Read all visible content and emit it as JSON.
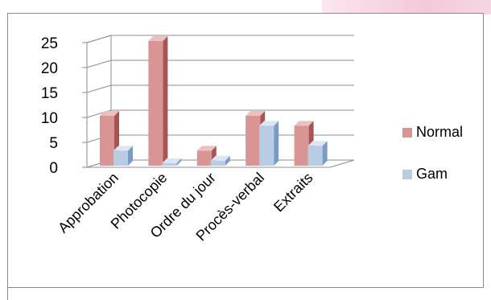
{
  "chart_data": {
    "type": "bar",
    "style": "3d-clustered-column",
    "categories": [
      "Approbation",
      "Photocopie",
      "Ordre du jour",
      "Procès-verbal",
      "Extraits"
    ],
    "series": [
      {
        "name": "Normal",
        "values": [
          10,
          25,
          3,
          10,
          8
        ],
        "color": "#d99594",
        "side_color": "#a55654",
        "top_color": "#ecc0bf"
      },
      {
        "name": "Gam",
        "values": [
          3,
          0.5,
          1,
          8,
          4
        ],
        "color": "#b8cce4",
        "side_color": "#7a9cc4",
        "top_color": "#dbe6f2"
      }
    ],
    "y_ticks": [
      "0",
      "5",
      "10",
      "15",
      "20",
      "25"
    ],
    "ylim": [
      0,
      25
    ],
    "grid": true,
    "legend": "right"
  }
}
